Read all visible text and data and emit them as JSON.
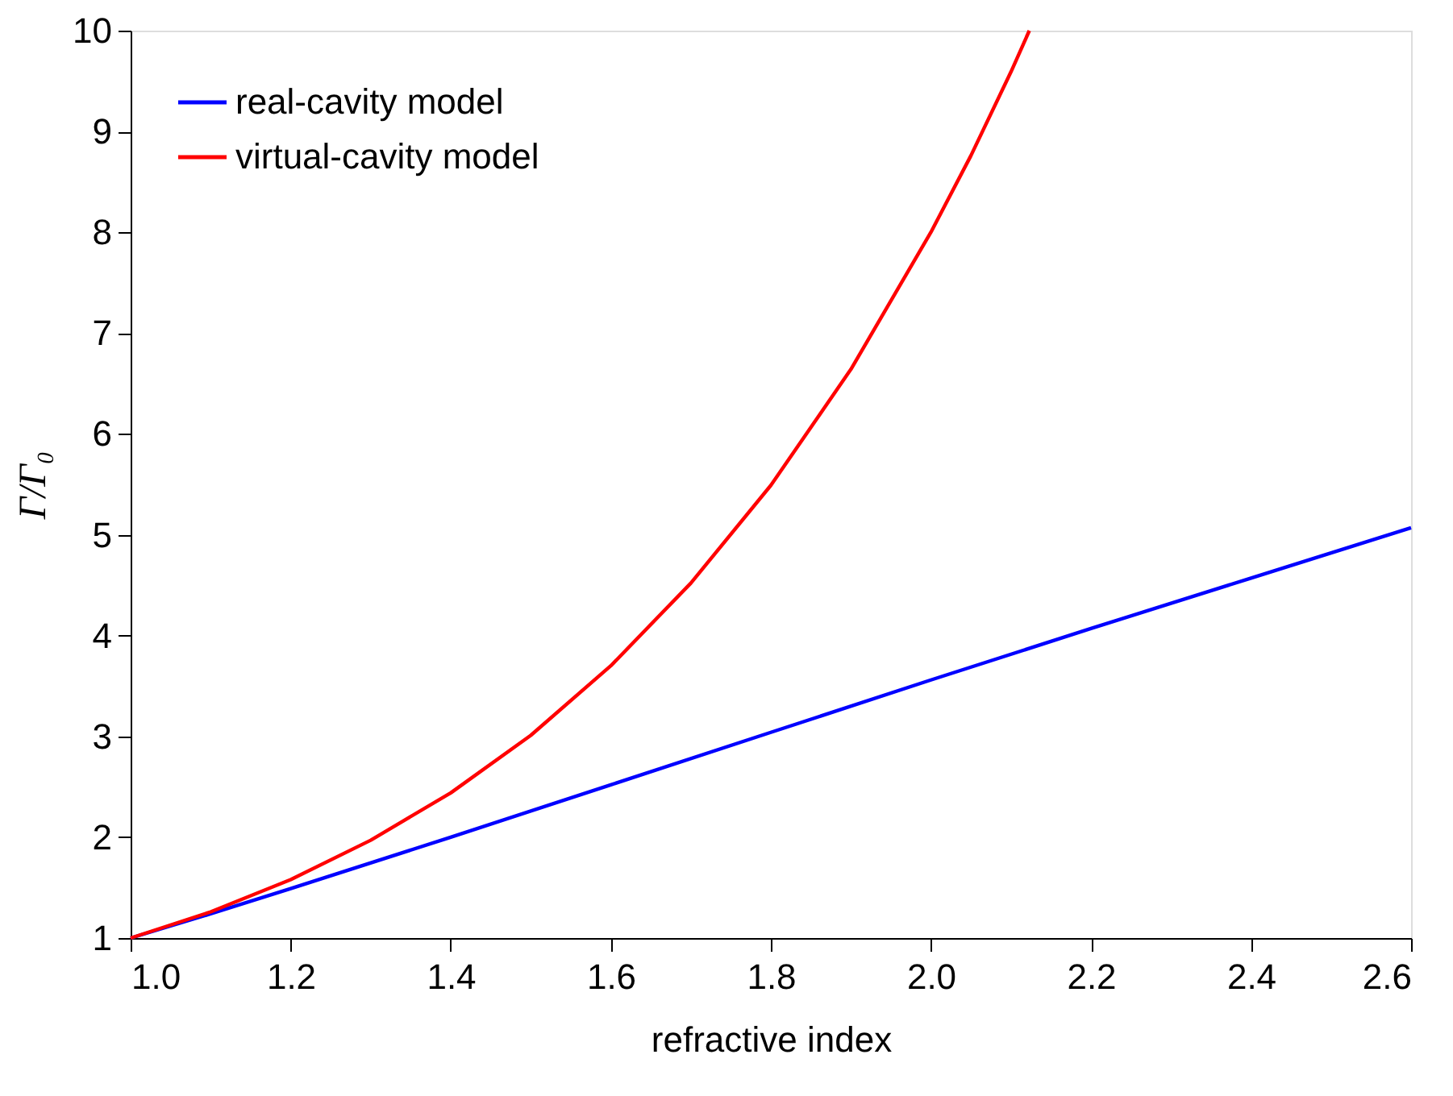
{
  "chart_data": {
    "type": "line",
    "xlabel": "refractive index",
    "ylabel": "Γ/Γ₀",
    "xlim": [
      1.0,
      2.6
    ],
    "xticks": [
      {
        "value": 1.0,
        "label": "1.0"
      },
      {
        "value": 1.2,
        "label": "1.2"
      },
      {
        "value": 1.4,
        "label": "1.4"
      },
      {
        "value": 1.6,
        "label": "1.6"
      },
      {
        "value": 1.8,
        "label": "1.8"
      },
      {
        "value": 2.0,
        "label": "2.0"
      },
      {
        "value": 2.2,
        "label": "2.2"
      },
      {
        "value": 2.4,
        "label": "2.4"
      },
      {
        "value": 2.6,
        "label": "2.6"
      }
    ],
    "ylim": [
      1,
      10
    ],
    "yticks": [
      1,
      2,
      3,
      4,
      5,
      6,
      7,
      8,
      9,
      10
    ],
    "grid": false,
    "legend": "top left",
    "marker": "none",
    "line_style": "solid",
    "series": [
      {
        "name": "real-cavity model",
        "color": "#0000ff",
        "x": [
          1.0,
          1.1,
          1.2,
          1.4,
          1.6,
          1.8,
          2.0,
          2.2,
          2.4,
          2.6
        ],
        "values": [
          1.0,
          1.24,
          1.49,
          2.0,
          2.52,
          3.04,
          3.56,
          4.07,
          4.57,
          5.07
        ]
      },
      {
        "name": "virtual-cavity model",
        "color": "#ff0000",
        "x": [
          1.0,
          1.1,
          1.2,
          1.3,
          1.4,
          1.5,
          1.6,
          1.7,
          1.8,
          1.9,
          2.0,
          2.05,
          2.1,
          2.123
        ],
        "values": [
          1.0,
          1.26,
          1.58,
          1.97,
          2.44,
          3.01,
          3.7,
          4.52,
          5.49,
          6.64,
          8.0,
          8.76,
          9.59,
          10.0
        ]
      }
    ]
  }
}
